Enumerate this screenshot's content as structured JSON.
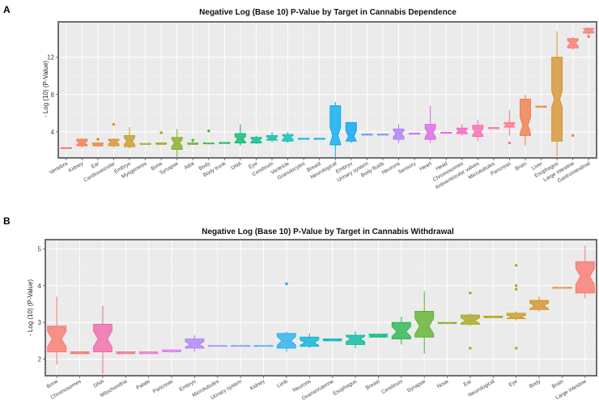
{
  "chart_data": [
    {
      "panel_label": "A",
      "type": "boxplot",
      "title": "Negative Log (Base 10) P-Value by Target in Cannabis Dependence",
      "xlabel": "",
      "ylabel": "- Log (10) (P-Value)",
      "ylim": [
        1.2,
        15.8
      ],
      "yticks": [
        4,
        8,
        12
      ],
      "grid": true,
      "legend": "none",
      "categories": [
        "Vertebra",
        "Kidney",
        "Ear",
        "Cardiovascular",
        "Embryo",
        "Myogenesis",
        "Bone",
        "Synapse",
        "Attia",
        "Body",
        "Body trunk",
        "DNA",
        "Eye",
        "Cerebrum",
        "Ventricle",
        "Granulocytes",
        "Breast",
        "Neurological",
        "Embryo",
        "Urinary system",
        "Body fluids",
        "Neurons",
        "Sensory",
        "Heart",
        "Head",
        "Chromosomes",
        "Antiventricular valves",
        "Microtubules",
        "Pancreas",
        "Brain",
        "Liver",
        "Esophagus",
        "Large intestine",
        "Gastrointestinal"
      ],
      "boxes": [
        {
          "min": 2.2,
          "q1": 2.2,
          "median": 2.25,
          "q3": 2.3,
          "max": 2.3,
          "outliers": [],
          "color": "#f8766d"
        },
        {
          "min": 2.3,
          "q1": 2.5,
          "median": 2.8,
          "q3": 3.2,
          "max": 3.3,
          "outliers": [],
          "color": "#f07a45"
        },
        {
          "min": 2.4,
          "q1": 2.5,
          "median": 2.6,
          "q3": 2.8,
          "max": 2.9,
          "outliers": [
            3.2
          ],
          "color": "#e5843a"
        },
        {
          "min": 2.3,
          "q1": 2.5,
          "median": 2.9,
          "q3": 3.2,
          "max": 3.3,
          "outliers": [
            4.8
          ],
          "color": "#d6902a"
        },
        {
          "min": 2.2,
          "q1": 2.4,
          "median": 3.0,
          "q3": 3.6,
          "max": 4.5,
          "outliers": [],
          "color": "#c49a1e"
        },
        {
          "min": 2.6,
          "q1": 2.65,
          "median": 2.7,
          "q3": 2.75,
          "max": 2.8,
          "outliers": [],
          "color": "#b0a31a"
        },
        {
          "min": 2.6,
          "q1": 2.65,
          "median": 2.7,
          "q3": 2.8,
          "max": 2.9,
          "outliers": [
            3.9
          ],
          "color": "#99a91a"
        },
        {
          "min": 1.2,
          "q1": 2.1,
          "median": 2.8,
          "q3": 3.4,
          "max": 4.3,
          "outliers": [],
          "color": "#80ae1f"
        },
        {
          "min": 2.6,
          "q1": 2.65,
          "median": 2.7,
          "q3": 2.8,
          "max": 2.9,
          "outliers": [
            3.1
          ],
          "color": "#63b32b"
        },
        {
          "min": 2.65,
          "q1": 2.7,
          "median": 2.75,
          "q3": 2.8,
          "max": 2.85,
          "outliers": [
            4.1
          ],
          "color": "#40b63d"
        },
        {
          "min": 2.7,
          "q1": 2.75,
          "median": 2.8,
          "q3": 2.85,
          "max": 2.9,
          "outliers": [],
          "color": "#15b954"
        },
        {
          "min": 2.5,
          "q1": 2.8,
          "median": 3.2,
          "q3": 3.8,
          "max": 4.8,
          "outliers": [],
          "color": "#00bb6e"
        },
        {
          "min": 2.7,
          "q1": 2.8,
          "median": 3.1,
          "q3": 3.4,
          "max": 3.6,
          "outliers": [],
          "color": "#00bd89"
        },
        {
          "min": 2.9,
          "q1": 3.1,
          "median": 3.3,
          "q3": 3.6,
          "max": 4.0,
          "outliers": [],
          "color": "#00bea3"
        },
        {
          "min": 2.8,
          "q1": 3.0,
          "median": 3.4,
          "q3": 3.7,
          "max": 4.0,
          "outliers": [],
          "color": "#00bdbc"
        },
        {
          "min": 3.15,
          "q1": 3.2,
          "median": 3.25,
          "q3": 3.3,
          "max": 3.35,
          "outliers": [],
          "color": "#00bad0"
        },
        {
          "min": 3.15,
          "q1": 3.2,
          "median": 3.25,
          "q3": 3.3,
          "max": 3.35,
          "outliers": [],
          "color": "#00b4e2"
        },
        {
          "min": 1.3,
          "q1": 2.6,
          "median": 3.6,
          "q3": 6.8,
          "max": 7.2,
          "outliers": [],
          "color": "#00acef"
        },
        {
          "min": 2.8,
          "q1": 3.0,
          "median": 3.5,
          "q3": 5.0,
          "max": 5.0,
          "outliers": [],
          "color": "#00a2f8"
        },
        {
          "min": 3.6,
          "q1": 3.65,
          "median": 3.7,
          "q3": 3.75,
          "max": 3.8,
          "outliers": [],
          "color": "#4d95fb"
        },
        {
          "min": 3.6,
          "q1": 3.65,
          "median": 3.7,
          "q3": 3.75,
          "max": 3.8,
          "outliers": [],
          "color": "#8688fc"
        },
        {
          "min": 2.8,
          "q1": 3.2,
          "median": 3.8,
          "q3": 4.3,
          "max": 4.8,
          "outliers": [],
          "color": "#ab79f8"
        },
        {
          "min": 3.7,
          "q1": 3.75,
          "median": 3.8,
          "q3": 3.85,
          "max": 3.9,
          "outliers": [],
          "color": "#c76df0"
        },
        {
          "min": 2.8,
          "q1": 3.2,
          "median": 3.9,
          "q3": 4.8,
          "max": 6.8,
          "outliers": [],
          "color": "#dc63e6"
        },
        {
          "min": 3.8,
          "q1": 3.85,
          "median": 3.9,
          "q3": 3.95,
          "max": 4.0,
          "outliers": [],
          "color": "#ec5cd8"
        },
        {
          "min": 3.6,
          "q1": 3.8,
          "median": 4.1,
          "q3": 4.4,
          "max": 4.8,
          "outliers": [],
          "color": "#f55fc6"
        },
        {
          "min": 3.0,
          "q1": 3.5,
          "median": 4.0,
          "q3": 4.7,
          "max": 5.3,
          "outliers": [],
          "color": "#fa65b1"
        },
        {
          "min": 4.3,
          "q1": 4.35,
          "median": 4.4,
          "q3": 4.45,
          "max": 4.5,
          "outliers": [],
          "color": "#fc6d9c"
        },
        {
          "min": 3.6,
          "q1": 4.5,
          "median": 4.7,
          "q3": 5.0,
          "max": 6.3,
          "outliers": [
            2.8
          ],
          "color": "#fb7487"
        },
        {
          "min": 2.5,
          "q1": 3.6,
          "median": 4.7,
          "q3": 7.5,
          "max": 8.0,
          "outliers": [],
          "color": "#f07a45"
        },
        {
          "min": 6.6,
          "q1": 6.65,
          "median": 6.7,
          "q3": 6.75,
          "max": 6.8,
          "outliers": [],
          "color": "#e5843a"
        },
        {
          "min": 1.4,
          "q1": 3.0,
          "median": 7.5,
          "q3": 12.0,
          "max": 14.8,
          "outliers": [],
          "color": "#d6902a"
        },
        {
          "min": 12.8,
          "q1": 13.0,
          "median": 13.5,
          "q3": 14.0,
          "max": 14.2,
          "outliers": [
            3.6
          ],
          "color": "#f8766d"
        },
        {
          "min": 14.2,
          "q1": 14.6,
          "median": 14.9,
          "q3": 15.1,
          "max": 15.2,
          "outliers": [
            14.2
          ],
          "color": "#f8766d"
        }
      ]
    },
    {
      "panel_label": "B",
      "type": "boxplot",
      "title": "Negative Log (Base 10) P-Value by Target in Cannabis Withdrawal",
      "xlabel": "",
      "ylabel": "- Log (10) (P-Value)",
      "ylim": [
        1.55,
        5.25
      ],
      "yticks": [
        2,
        3,
        4,
        5
      ],
      "grid": true,
      "legend": "none",
      "categories": [
        "Bone",
        "Chromosomes",
        "DNA",
        "Mitochondria",
        "Palate",
        "Pancreas",
        "Embryo",
        "Microtubules",
        "Urinary system",
        "Kidney",
        "Limb",
        "Neurons",
        "Ovarian/uterine",
        "Esophagus",
        "Breast",
        "Cerebrum",
        "Synapse",
        "Nose",
        "Ear",
        "Neurological",
        "Eye",
        "Body",
        "Brain",
        "Large intestine"
      ],
      "boxes": [
        {
          "min": 1.85,
          "q1": 2.2,
          "median": 2.55,
          "q3": 2.9,
          "max": 3.7,
          "outliers": [],
          "color": "#f8766d"
        },
        {
          "min": 2.15,
          "q1": 2.15,
          "median": 2.17,
          "q3": 2.2,
          "max": 2.2,
          "outliers": [],
          "color": "#f07a78"
        },
        {
          "min": 1.6,
          "q1": 2.2,
          "median": 2.55,
          "q3": 2.95,
          "max": 3.45,
          "outliers": [],
          "color": "#f066a8"
        },
        {
          "min": 2.15,
          "q1": 2.15,
          "median": 2.17,
          "q3": 2.2,
          "max": 2.2,
          "outliers": [],
          "color": "#f07a95"
        },
        {
          "min": 2.15,
          "q1": 2.15,
          "median": 2.17,
          "q3": 2.2,
          "max": 2.2,
          "outliers": [],
          "color": "#e87fcf"
        },
        {
          "min": 2.18,
          "q1": 2.2,
          "median": 2.22,
          "q3": 2.25,
          "max": 2.28,
          "outliers": [],
          "color": "#e07cf0"
        },
        {
          "min": 2.2,
          "q1": 2.3,
          "median": 2.4,
          "q3": 2.55,
          "max": 2.65,
          "outliers": [],
          "color": "#b07ff8"
        },
        {
          "min": 2.33,
          "q1": 2.35,
          "median": 2.36,
          "q3": 2.37,
          "max": 2.38,
          "outliers": [],
          "color": "#8a90fb"
        },
        {
          "min": 2.33,
          "q1": 2.35,
          "median": 2.36,
          "q3": 2.37,
          "max": 2.38,
          "outliers": [],
          "color": "#6a9cfb"
        },
        {
          "min": 2.33,
          "q1": 2.35,
          "median": 2.36,
          "q3": 2.37,
          "max": 2.38,
          "outliers": [],
          "color": "#4aa6f5"
        },
        {
          "min": 2.2,
          "q1": 2.3,
          "median": 2.5,
          "q3": 2.7,
          "max": 2.75,
          "outliers": [
            4.05
          ],
          "color": "#21aeeb"
        },
        {
          "min": 2.3,
          "q1": 2.35,
          "median": 2.45,
          "q3": 2.6,
          "max": 2.7,
          "outliers": [],
          "color": "#00b3d6"
        },
        {
          "min": 2.5,
          "q1": 2.5,
          "median": 2.52,
          "q3": 2.55,
          "max": 2.55,
          "outliers": [],
          "color": "#00b7c2"
        },
        {
          "min": 2.3,
          "q1": 2.4,
          "median": 2.55,
          "q3": 2.65,
          "max": 2.75,
          "outliers": [],
          "color": "#00ba9e"
        },
        {
          "min": 2.6,
          "q1": 2.6,
          "median": 2.63,
          "q3": 2.68,
          "max": 2.7,
          "outliers": [],
          "color": "#00bb7e"
        },
        {
          "min": 2.4,
          "q1": 2.55,
          "median": 2.75,
          "q3": 3.0,
          "max": 3.15,
          "outliers": [],
          "color": "#26b54c"
        },
        {
          "min": 2.15,
          "q1": 2.6,
          "median": 2.9,
          "q3": 3.3,
          "max": 3.85,
          "outliers": [],
          "color": "#5cb12a"
        },
        {
          "min": 2.95,
          "q1": 2.97,
          "median": 2.98,
          "q3": 3.0,
          "max": 3.0,
          "outliers": [],
          "color": "#8aae1d"
        },
        {
          "min": 2.9,
          "q1": 2.95,
          "median": 3.05,
          "q3": 3.2,
          "max": 3.25,
          "outliers": [
            2.3,
            3.8
          ],
          "color": "#a7a51a"
        },
        {
          "min": 3.12,
          "q1": 3.13,
          "median": 3.15,
          "q3": 3.17,
          "max": 3.18,
          "outliers": [],
          "color": "#b9a01b"
        },
        {
          "min": 3.05,
          "q1": 3.1,
          "median": 3.15,
          "q3": 3.25,
          "max": 3.3,
          "outliers": [
            2.3,
            3.9,
            4.0,
            4.55
          ],
          "color": "#c99a1d"
        },
        {
          "min": 3.3,
          "q1": 3.35,
          "median": 3.45,
          "q3": 3.6,
          "max": 3.7,
          "outliers": [],
          "color": "#d59022"
        },
        {
          "min": 3.92,
          "q1": 3.93,
          "median": 3.94,
          "q3": 3.95,
          "max": 3.96,
          "outliers": [],
          "color": "#e6853c"
        },
        {
          "min": 3.65,
          "q1": 3.8,
          "median": 4.25,
          "q3": 4.65,
          "max": 5.1,
          "outliers": [],
          "color": "#f8766d"
        }
      ]
    }
  ]
}
